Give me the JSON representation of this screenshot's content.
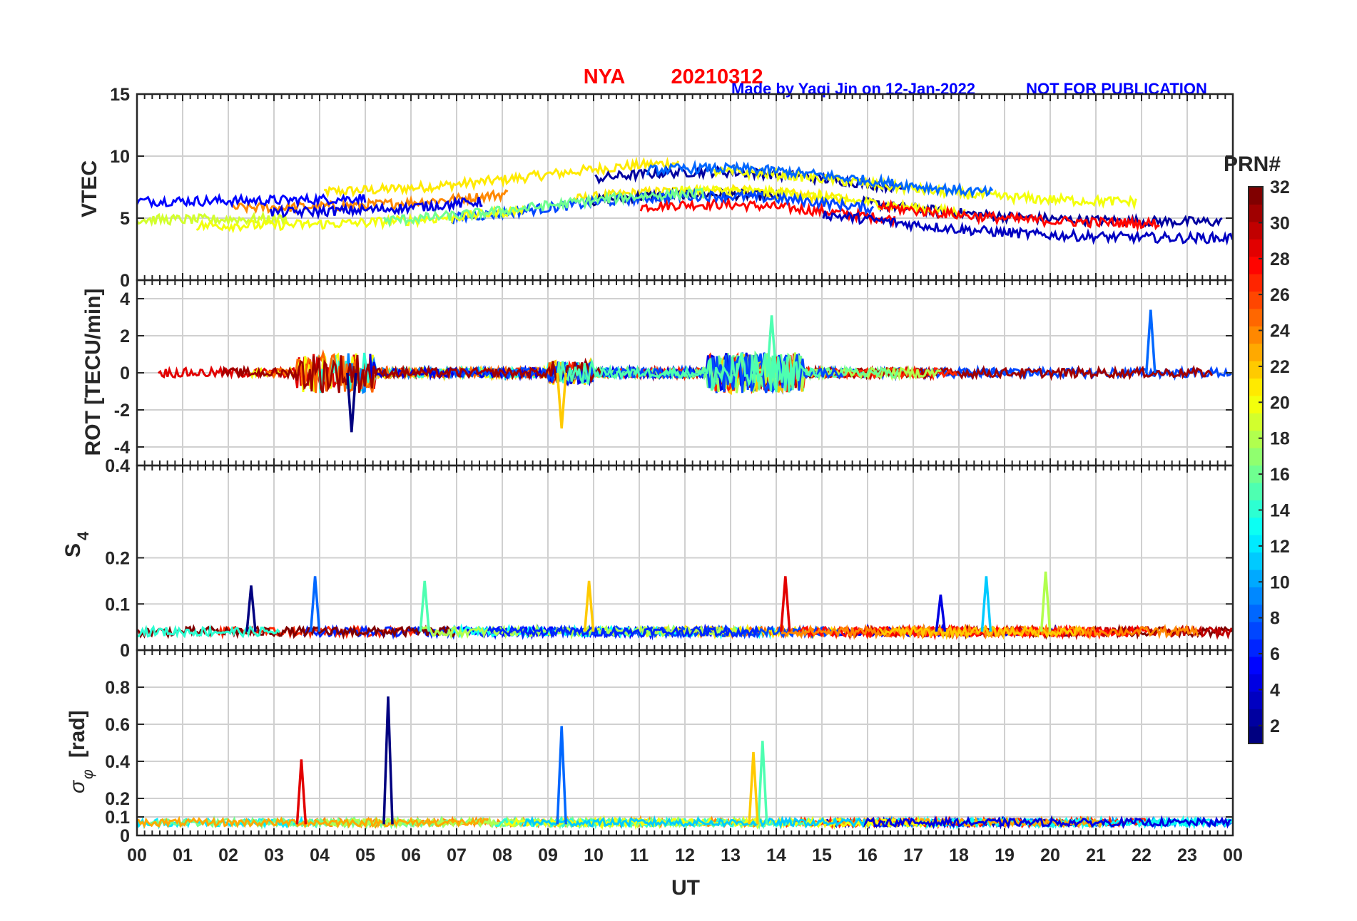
{
  "header": {
    "station": "NYA",
    "date": "20210312",
    "credit": "Made by Yaqi Jin on 12-Jan-2022",
    "notice": "NOT FOR PUBLICATION",
    "title_color": "#ff0000",
    "credit_color": "#0000ff"
  },
  "chart_data": [
    {
      "type": "line",
      "panel": "vtec",
      "ylabel": "VTEC",
      "ylim": [
        0,
        15
      ],
      "yticks": [
        "0",
        "5",
        "10",
        "15"
      ],
      "x_range_hours": [
        0,
        24
      ],
      "series_description": "multiple PRN traces colored by PRN number",
      "typical_range": [
        2,
        10.5
      ]
    },
    {
      "type": "line",
      "panel": "rot",
      "ylabel": "ROT [TECU/min]",
      "ylim": [
        -5,
        5
      ],
      "yticks": [
        "-4",
        "-2",
        "0",
        "2",
        "4"
      ],
      "x_range_hours": [
        0,
        24
      ],
      "peak_values": [
        {
          "x": 4.7,
          "y": -3.2
        },
        {
          "x": 22.2,
          "y": 3.4
        },
        {
          "x": 13.9,
          "y": 3.1
        },
        {
          "x": 9.3,
          "y": -3.0
        }
      ]
    },
    {
      "type": "line",
      "panel": "s4",
      "ylabel_main": "S",
      "ylabel_sub": "4",
      "ylim": [
        0,
        0.4
      ],
      "yticks": [
        "0",
        "0.1",
        "0.2",
        "0.4"
      ],
      "x_range_hours": [
        0,
        24
      ],
      "peak_values": [
        {
          "x": 2.5,
          "y": 0.14
        },
        {
          "x": 3.9,
          "y": 0.16
        },
        {
          "x": 6.3,
          "y": 0.15
        },
        {
          "x": 9.9,
          "y": 0.15
        },
        {
          "x": 14.2,
          "y": 0.16
        },
        {
          "x": 17.6,
          "y": 0.12
        },
        {
          "x": 18.6,
          "y": 0.16
        },
        {
          "x": 19.9,
          "y": 0.17
        }
      ]
    },
    {
      "type": "line",
      "panel": "sigma_phi",
      "ylabel_main": "σ",
      "ylabel_sub": "φ",
      "ylabel_unit": "[rad]",
      "ylim": [
        0,
        1
      ],
      "yticks": [
        "0",
        "0.1",
        "0.2",
        "0.4",
        "0.6",
        "0.8"
      ],
      "x_range_hours": [
        0,
        24
      ],
      "peak_values": [
        {
          "x": 5.5,
          "y": 0.75
        },
        {
          "x": 9.3,
          "y": 0.59
        },
        {
          "x": 13.7,
          "y": 0.51
        },
        {
          "x": 13.5,
          "y": 0.45
        },
        {
          "x": 3.6,
          "y": 0.41
        }
      ]
    }
  ],
  "xaxis": {
    "label": "UT",
    "ticks": [
      "00",
      "01",
      "02",
      "03",
      "04",
      "05",
      "06",
      "07",
      "08",
      "09",
      "10",
      "11",
      "12",
      "13",
      "14",
      "15",
      "16",
      "17",
      "18",
      "19",
      "20",
      "21",
      "22",
      "23",
      "00"
    ]
  },
  "colorbar": {
    "title": "PRN#",
    "range": [
      1,
      32
    ],
    "ticks": [
      "2",
      "4",
      "6",
      "8",
      "10",
      "12",
      "14",
      "16",
      "18",
      "20",
      "22",
      "24",
      "26",
      "28",
      "30",
      "32"
    ],
    "colormap": "jet"
  }
}
